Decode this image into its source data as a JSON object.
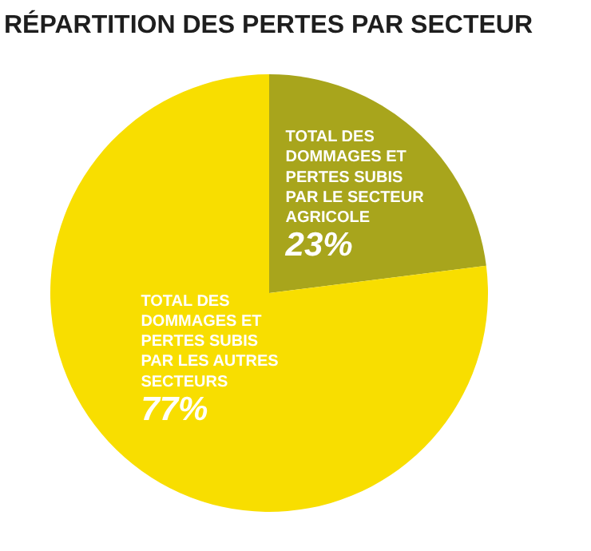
{
  "chart_data": {
    "type": "pie",
    "title": "RÉPARTITION DES PERTES PAR SECTEUR",
    "categories": [
      "TOTAL DES\nDOMMAGES ET\nPERTES SUBIS\nPAR LE SECTEUR\nAGRICOLE",
      "TOTAL DES\nDOMMAGES ET\nPERTES SUBIS\nPAR LES AUTRES\nSECTEURS"
    ],
    "values": [
      23,
      77
    ],
    "value_labels": [
      "23%",
      "77%"
    ],
    "colors": [
      "#a8a51c",
      "#f8de00"
    ]
  }
}
